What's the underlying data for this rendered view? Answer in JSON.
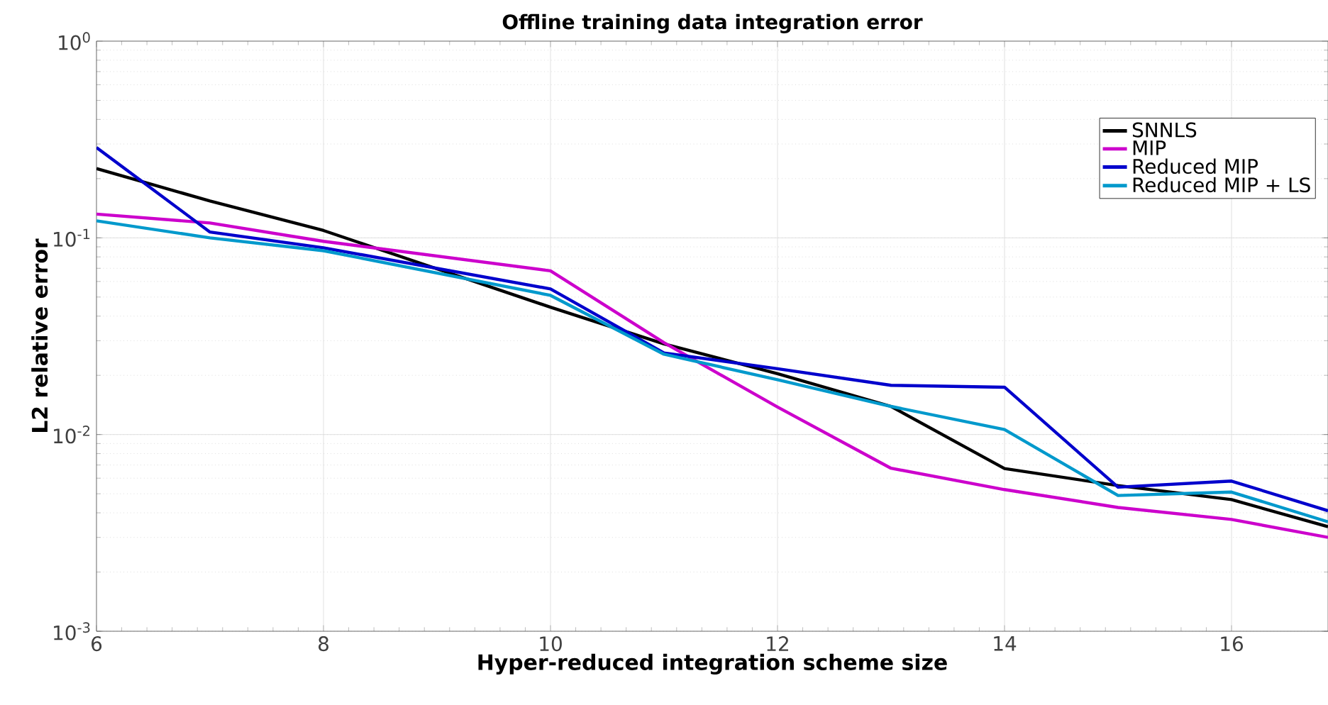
{
  "chart_data": {
    "type": "line",
    "title": "Offline training data integration error",
    "xlabel": "Hyper-reduced integration scheme size",
    "ylabel": "L2 relative error",
    "x": [
      6,
      7,
      8,
      10,
      11,
      12,
      13,
      14,
      15,
      16,
      16.85
    ],
    "series": [
      {
        "name": "SNNLS",
        "color": "#000000",
        "values": [
          0.225,
          0.154,
          0.109,
          0.0444,
          0.0289,
          0.0204,
          0.0139,
          0.00672,
          0.0055,
          0.00467,
          0.0034
        ]
      },
      {
        "name": "MIP",
        "color": "#cc00cc",
        "values": [
          0.132,
          0.119,
          0.096,
          0.068,
          0.0293,
          0.0138,
          0.00674,
          0.00525,
          0.00426,
          0.0037,
          0.003
        ]
      },
      {
        "name": "Reduced MIP",
        "color": "#0000cc",
        "values": [
          0.288,
          0.107,
          0.089,
          0.055,
          0.026,
          0.0216,
          0.0178,
          0.0174,
          0.0054,
          0.0058,
          0.0041
        ]
      },
      {
        "name": "Reduced MIP + LS",
        "color": "#0099cc",
        "values": [
          0.122,
          0.1,
          0.086,
          0.051,
          0.0256,
          0.019,
          0.0139,
          0.0106,
          0.0049,
          0.0051,
          0.0036
        ]
      }
    ],
    "xlim": [
      6,
      16.85
    ],
    "ylim": [
      0.001,
      1
    ],
    "xticks": [
      6,
      8,
      10,
      12,
      14,
      16
    ],
    "yticks": [
      {
        "value": 0.001,
        "label": "10$^{-3}$"
      },
      {
        "value": 0.01,
        "label": "10$^{-2}$"
      },
      {
        "value": 0.1,
        "label": "10$^{-1}$"
      },
      {
        "value": 1,
        "label": "10$^{0}$"
      }
    ],
    "log": "y",
    "grid": true,
    "legend": "top right",
    "line_style": "solid",
    "marker": "none"
  }
}
